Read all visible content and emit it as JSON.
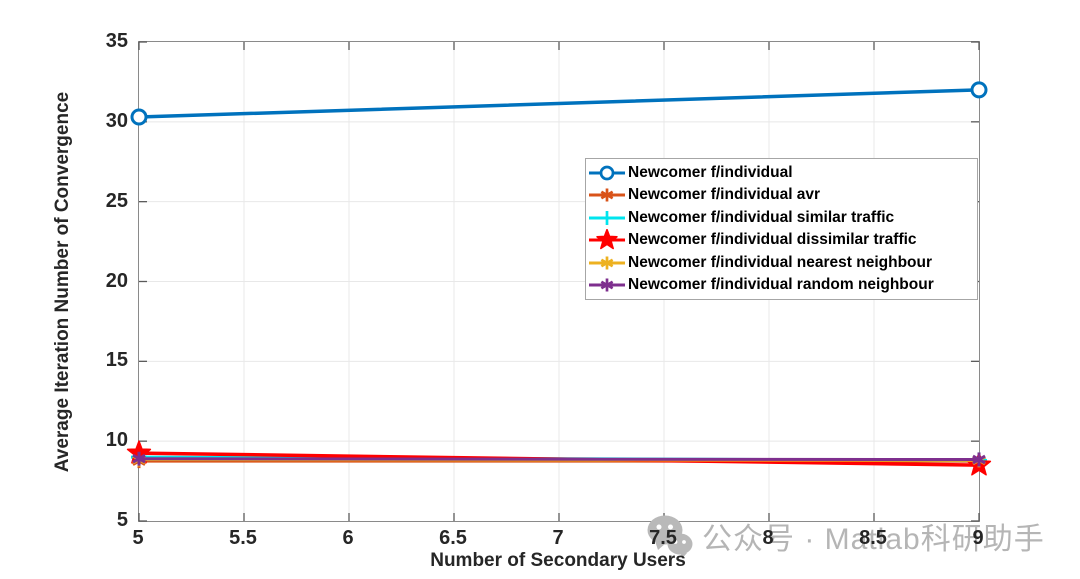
{
  "watermark": {
    "icon": "wechat-icon",
    "text": "公众号 · Matlab科研助手"
  },
  "chart_data": {
    "type": "line",
    "title": "",
    "xlabel": "Number of Secondary Users",
    "ylabel": "Average Iteration Number of Convergence",
    "x": [
      5,
      9
    ],
    "xlim": [
      5,
      9
    ],
    "ylim": [
      5,
      35
    ],
    "xticks": [
      5,
      5.5,
      6,
      6.5,
      7,
      7.5,
      8,
      8.5,
      9
    ],
    "yticks": [
      5,
      10,
      15,
      20,
      25,
      30,
      35
    ],
    "grid": true,
    "legend_position": "right-center-inside",
    "axis_color": "#8a8a8a",
    "grid_color": "#e8e8e8",
    "series": [
      {
        "name": "Newcomer f/individual",
        "color": "#0072BD",
        "marker": "circle",
        "line_width": 3.5,
        "marker_size": 7,
        "values": [
          30.3,
          32.0
        ]
      },
      {
        "name": "Newcomer f/individual avr",
        "color": "#D95319",
        "marker": "asterisk",
        "line_width": 3,
        "marker_size": 7,
        "values": [
          8.75,
          8.75
        ]
      },
      {
        "name": "Newcomer f/individual similar traffic",
        "color": "#00E5EE",
        "marker": "plus",
        "line_width": 3,
        "marker_size": 8,
        "values": [
          9.0,
          8.8
        ]
      },
      {
        "name": "Newcomer f/individual dissimilar traffic",
        "color": "#FF0000",
        "marker": "star5",
        "line_width": 3.5,
        "marker_size": 12,
        "values": [
          9.25,
          8.5
        ]
      },
      {
        "name": "Newcomer f/individual nearest neighbour",
        "color": "#EDB120",
        "marker": "asterisk",
        "line_width": 3,
        "marker_size": 7,
        "values": [
          8.85,
          8.8
        ]
      },
      {
        "name": "Newcomer f/individual random neighbour",
        "color": "#7E2F8E",
        "marker": "asterisk",
        "line_width": 3,
        "marker_size": 7,
        "values": [
          8.9,
          8.85
        ]
      }
    ]
  }
}
